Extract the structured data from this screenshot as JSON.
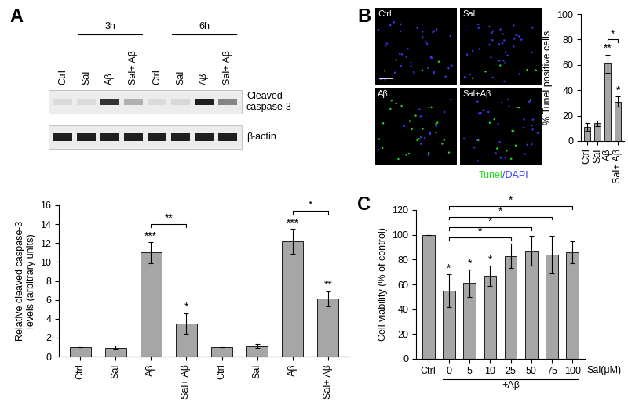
{
  "panel_labels": [
    "A",
    "B",
    "C"
  ],
  "blot": {
    "lanes": [
      "Ctrl",
      "Sal",
      "Aβ",
      "Sal+ Aβ",
      "Ctrl",
      "Sal",
      "Aβ",
      "Sal+ Aβ"
    ],
    "groups": [
      {
        "label": "3h",
        "lanes": [
          1,
          3
        ]
      },
      {
        "label": "6h",
        "lanes": [
          5,
          7
        ]
      }
    ],
    "bands": [
      "Cleaved\ncaspase-3",
      "β-actin"
    ]
  },
  "micrographs": {
    "labels": [
      "Ctrl",
      "Sal",
      "Aβ",
      "Sal+Aβ"
    ],
    "stain": [
      {
        "text": "Tunel",
        "color": "#22dd22"
      },
      {
        "text": "/DAPI",
        "color": "#3a3aff"
      }
    ]
  },
  "chart_data": [
    {
      "type": "bar",
      "categories": [
        "Ctrl",
        "Sal",
        "Aβ",
        "Sal+ Aβ",
        "Ctrl",
        "Sal",
        "Aβ",
        "Sal+ Aβ"
      ],
      "values": [
        1,
        0.95,
        11,
        3.5,
        1,
        1.1,
        12.2,
        6.1
      ],
      "errors": [
        0,
        0.2,
        1.1,
        1.1,
        0,
        0.2,
        1.3,
        0.8
      ],
      "color": "#a6a6a6",
      "ylabel": "Relative cleaved caspase-3\nlevels (arbitrary units)",
      "ylim": [
        0,
        16
      ],
      "yticks": [
        0,
        2,
        4,
        6,
        8,
        10,
        12,
        14,
        16
      ],
      "annotations": [
        {
          "text": "***",
          "index": 2
        },
        {
          "text": "*",
          "index": 3
        },
        {
          "text": "***",
          "index": 6
        },
        {
          "text": "**",
          "index": 7
        }
      ],
      "brackets": [
        {
          "text": "**",
          "from": 2,
          "to": 3
        },
        {
          "text": "*",
          "from": 6,
          "to": 7
        }
      ]
    },
    {
      "type": "bar",
      "categories": [
        "Ctrl",
        "Sal",
        "Aβ",
        "Sal+ Aβ"
      ],
      "values": [
        11,
        14,
        61,
        31
      ],
      "errors": [
        3,
        2,
        7,
        4
      ],
      "color": "#a6a6a6",
      "ylabel": "% Tunel positive cells",
      "ylim": [
        0,
        100
      ],
      "yticks": [
        0,
        20,
        40,
        60,
        80,
        100
      ],
      "annotations": [
        {
          "text": "**",
          "index": 2
        },
        {
          "text": "*",
          "index": 3
        }
      ],
      "brackets": [
        {
          "text": "*",
          "from": 2,
          "to": 3
        }
      ]
    },
    {
      "type": "bar",
      "categories": [
        "Ctrl",
        "0",
        "5",
        "10",
        "25",
        "50",
        "75",
        "100"
      ],
      "values": [
        100,
        55,
        61,
        67,
        83,
        87,
        84,
        86
      ],
      "errors": [
        0,
        13,
        11,
        8,
        10,
        12,
        15,
        9
      ],
      "color": "#a6a6a6",
      "ylabel": "Cell viability (% of control)",
      "xlabel": "Sal(μM)",
      "group": {
        "text": "+Aβ",
        "from": 1,
        "to": 7
      },
      "ylim": [
        0,
        120
      ],
      "yticks": [
        0,
        20,
        40,
        60,
        80,
        100,
        120
      ],
      "annotations": [
        {
          "text": "*",
          "index": 1
        },
        {
          "text": "*",
          "index": 2
        },
        {
          "text": "*",
          "index": 3
        }
      ],
      "brackets": [
        {
          "text": "*",
          "from": 1,
          "to": 4
        },
        {
          "text": "*",
          "from": 1,
          "to": 5
        },
        {
          "text": "*",
          "from": 1,
          "to": 6
        },
        {
          "text": "*",
          "from": 1,
          "to": 7
        }
      ]
    }
  ]
}
